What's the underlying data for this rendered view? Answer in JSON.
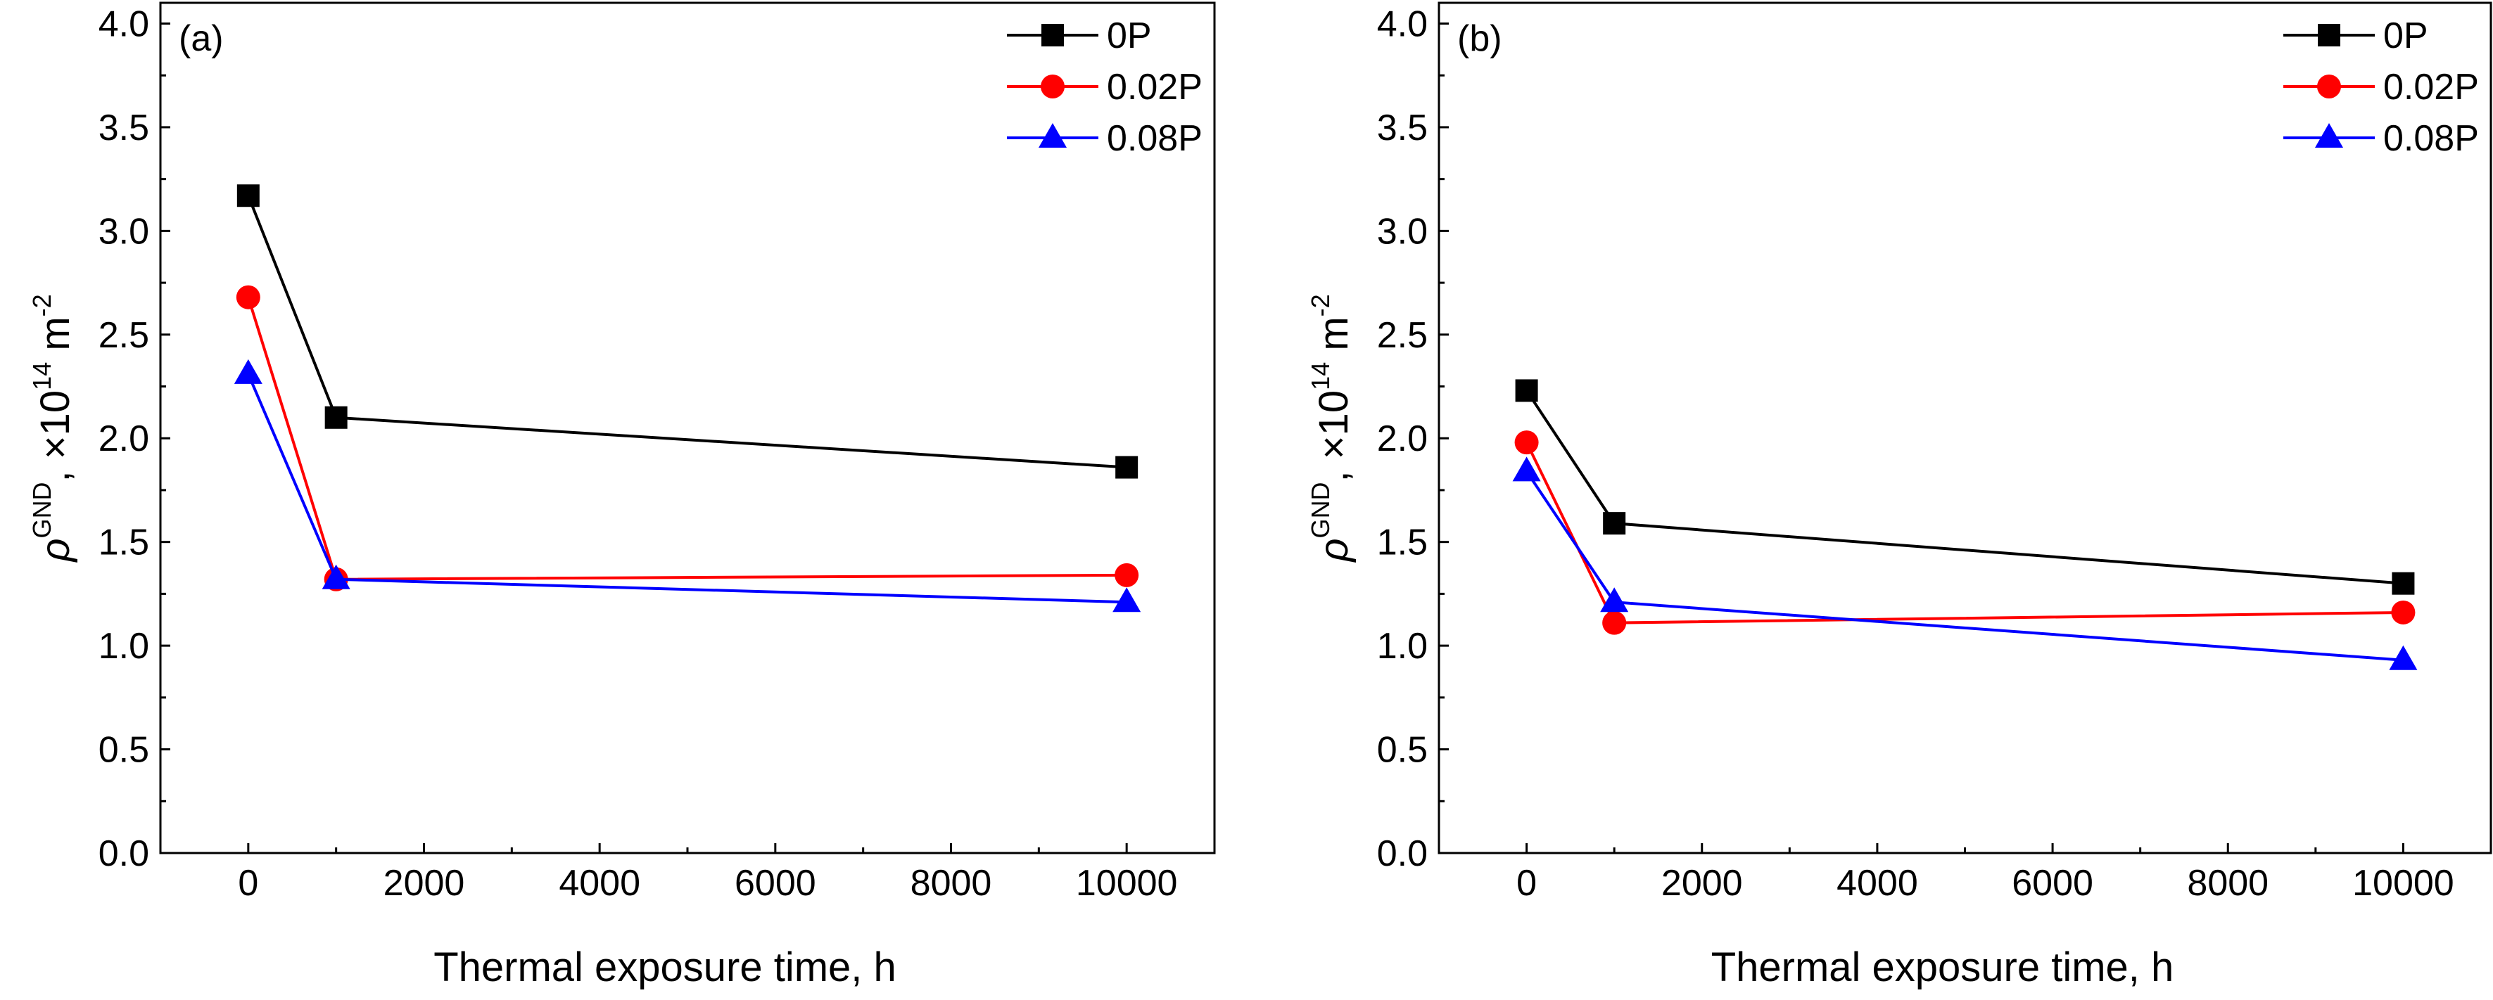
{
  "chart_data": [
    {
      "type": "line",
      "panel_label": "(a)",
      "xlabel": "Thermal exposure time, h",
      "ylabel": {
        "symbol": "ρ",
        "sup": "GND",
        "mid": ", ×10",
        "exp": "14",
        "unit": " m",
        "unit_exp": "-2"
      },
      "xlim": [
        -1000,
        11000
      ],
      "ylim": [
        0,
        4.1
      ],
      "xticks": [
        0,
        2000,
        4000,
        6000,
        8000,
        10000
      ],
      "yticks": [
        0.0,
        0.5,
        1.0,
        1.5,
        2.0,
        2.5,
        3.0,
        3.5,
        4.0
      ],
      "grid": false,
      "legend_position": "top-right",
      "x": [
        0,
        1000,
        10000
      ],
      "series": [
        {
          "name": "0P",
          "color": "#000000",
          "marker": "square",
          "values": [
            3.17,
            2.1,
            1.86
          ]
        },
        {
          "name": "0.02P",
          "color": "#ff0000",
          "marker": "circle",
          "values": [
            2.68,
            1.32,
            1.34
          ]
        },
        {
          "name": "0.08P",
          "color": "#0000ff",
          "marker": "triangle",
          "values": [
            2.31,
            1.32,
            1.21
          ]
        }
      ]
    },
    {
      "type": "line",
      "panel_label": "(b)",
      "xlabel": "Thermal exposure time, h",
      "ylabel": {
        "symbol": "ρ",
        "sup": "GND",
        "mid": ", ×10",
        "exp": "14",
        "unit": " m",
        "unit_exp": "-2"
      },
      "xlim": [
        -1000,
        11000
      ],
      "ylim": [
        0,
        4.1
      ],
      "xticks": [
        0,
        2000,
        4000,
        6000,
        8000,
        10000
      ],
      "yticks": [
        0.0,
        0.5,
        1.0,
        1.5,
        2.0,
        2.5,
        3.0,
        3.5,
        4.0
      ],
      "grid": false,
      "legend_position": "top-right",
      "x": [
        0,
        1000,
        10000
      ],
      "series": [
        {
          "name": "0P",
          "color": "#000000",
          "marker": "square",
          "values": [
            2.23,
            1.59,
            1.3
          ]
        },
        {
          "name": "0.02P",
          "color": "#ff0000",
          "marker": "circle",
          "values": [
            1.98,
            1.11,
            1.16
          ]
        },
        {
          "name": "0.08P",
          "color": "#0000ff",
          "marker": "triangle",
          "values": [
            1.84,
            1.21,
            0.93
          ]
        }
      ]
    }
  ]
}
